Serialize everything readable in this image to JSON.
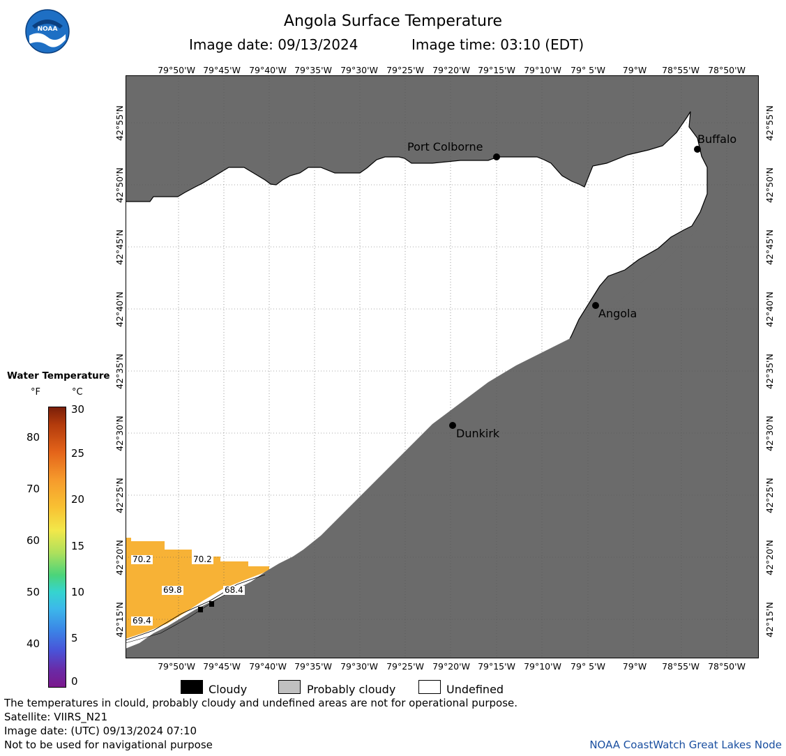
{
  "header": {
    "title": "Angola Surface Temperature",
    "image_date": "Image date: 09/13/2024",
    "image_time": "Image time: 03:10 (EDT)",
    "logo_text": "NOAA"
  },
  "axes": {
    "lon_ticks": [
      "79°50'W",
      "79°45'W",
      "79°40'W",
      "79°35'W",
      "79°30'W",
      "79°25'W",
      "79°20'W",
      "79°15'W",
      "79°10'W",
      "79° 5'W",
      "79°W",
      "78°55'W",
      "78°50'W"
    ],
    "lat_ticks": [
      "42°55'N",
      "42°50'N",
      "42°45'N",
      "42°40'N",
      "42°35'N",
      "42°30'N",
      "42°25'N",
      "42°20'N",
      "42°15'N"
    ]
  },
  "cities": [
    {
      "name": "Port Colborne"
    },
    {
      "name": "Buffalo"
    },
    {
      "name": "Angola"
    },
    {
      "name": "Dunkirk"
    }
  ],
  "temperature_labels": [
    "70.2",
    "70.2",
    "69.8",
    "68.4",
    "69.4"
  ],
  "colorbar": {
    "title": "Water Temperature",
    "unit_f": "°F",
    "unit_c": "°C",
    "f_ticks": [
      "80",
      "70",
      "60",
      "50",
      "40"
    ],
    "c_ticks": [
      "30",
      "25",
      "20",
      "15",
      "10",
      "5",
      "0"
    ]
  },
  "legend": {
    "cloudy": "Cloudy",
    "probably_cloudy": "Probably cloudy",
    "undefined": "Undefined"
  },
  "footer": {
    "disclaimer": "The temperatures in clould, probably cloudy and undefined areas are not for operational purpose.",
    "satellite": "Satellite: VIIRS_N21",
    "utc_date": "Image date: (UTC) 09/13/2024  07:10",
    "nav_warning": "Not to be used for navigational purpose",
    "credit": "NOAA CoastWatch Great Lakes Node"
  },
  "colors": {
    "land": "#6b6b6b",
    "undefined_water": "#ffffff",
    "warm_water": "#f7b236",
    "cloudy": "#000000",
    "probably_cloudy": "#c0c0c0",
    "credit_text": "#1a4fa0"
  }
}
